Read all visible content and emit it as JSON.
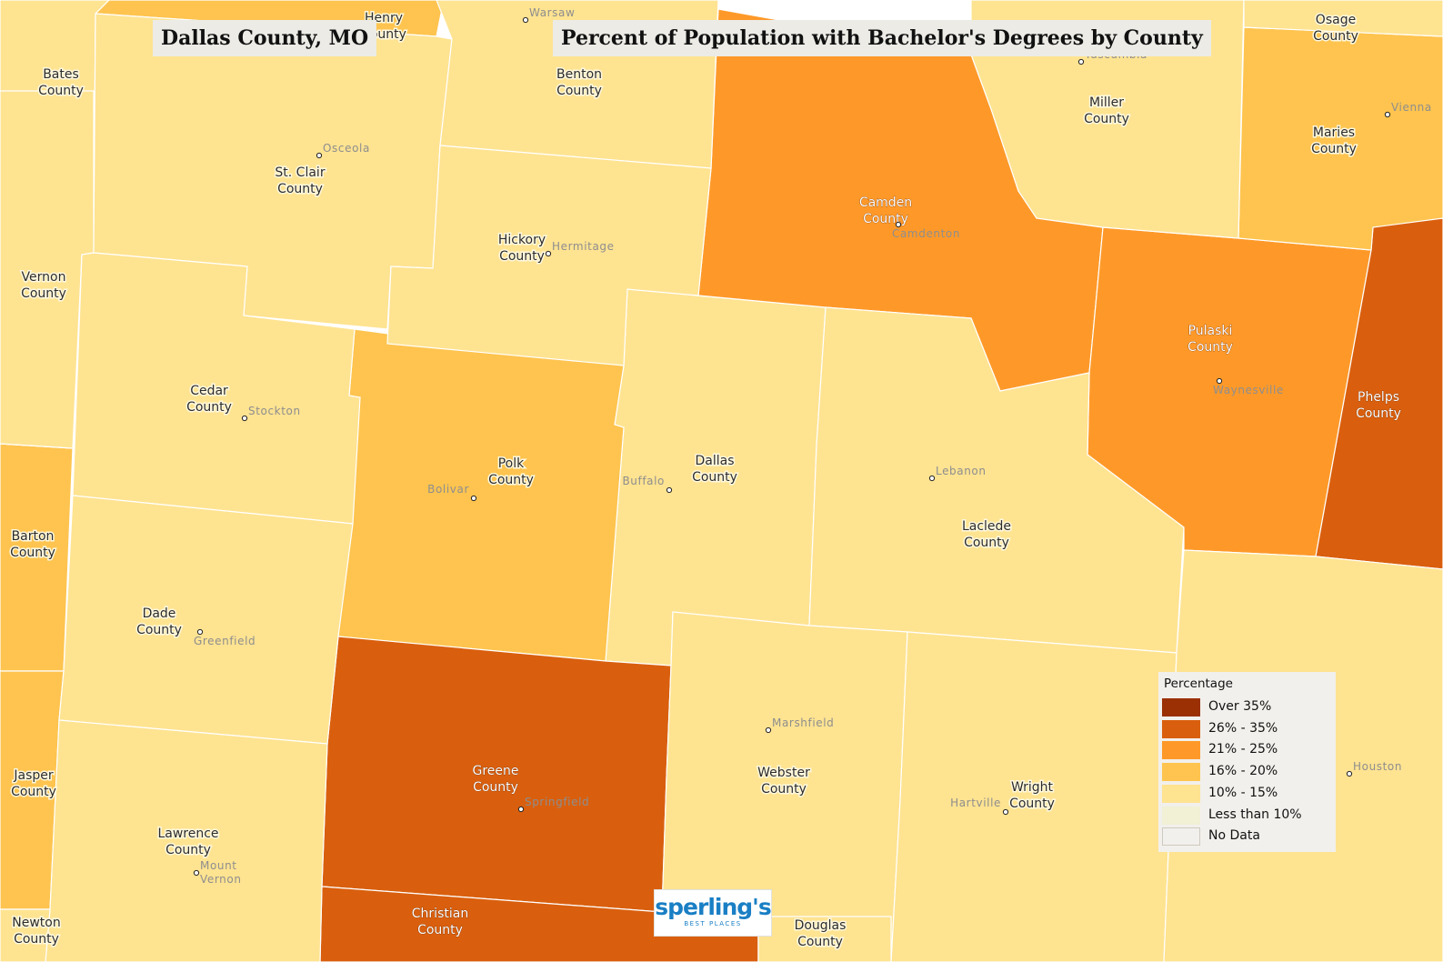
{
  "map": {
    "page_title": "Dallas County, MO",
    "chart_title": "Percent of Population with Bachelor's Degrees by County",
    "counties": [
      {
        "key": "dallas",
        "label": "Dallas County",
        "category": "10% - 15%"
      },
      {
        "key": "polk",
        "label": "Polk County",
        "category": "16% - 20%"
      },
      {
        "key": "greene",
        "label": "Greene County",
        "category": "26% - 35%"
      },
      {
        "key": "camden",
        "label": "Camden County",
        "category": "21% - 25%"
      },
      {
        "key": "pulaski",
        "label": "Pulaski County",
        "category": "21% - 25%"
      },
      {
        "key": "phelps",
        "label": "Phelps County",
        "category": "26% - 35%"
      },
      {
        "key": "maries",
        "label": "Maries County",
        "category": "16% - 20%"
      },
      {
        "key": "christian",
        "label": "Christian County",
        "category": "26% - 35%"
      },
      {
        "key": "barton",
        "label": "Barton County",
        "category": "16% - 20%"
      },
      {
        "key": "jasper",
        "label": "Jasper County",
        "category": "16% - 20%"
      },
      {
        "key": "henry",
        "label": "Henry County",
        "category": "16% - 20%"
      },
      {
        "key": "bates",
        "label": "Bates County",
        "category": "10% - 15%"
      },
      {
        "key": "vernon",
        "label": "Vernon County",
        "category": "10% - 15%"
      },
      {
        "key": "st_clair",
        "label": "St. Clair County",
        "category": "10% - 15%"
      },
      {
        "key": "benton",
        "label": "Benton County",
        "category": "10% - 15%"
      },
      {
        "key": "hickory",
        "label": "Hickory County",
        "category": "10% - 15%"
      },
      {
        "key": "cedar",
        "label": "Cedar County",
        "category": "10% - 15%"
      },
      {
        "key": "dade",
        "label": "Dade County",
        "category": "10% - 15%"
      },
      {
        "key": "lawrence",
        "label": "Lawrence County",
        "category": "10% - 15%"
      },
      {
        "key": "newton",
        "label": "Newton County",
        "category": "10% - 15%"
      },
      {
        "key": "miller",
        "label": "Miller County",
        "category": "10% - 15%"
      },
      {
        "key": "osage",
        "label": "Osage County",
        "category": "10% - 15%"
      },
      {
        "key": "laclede",
        "label": "Laclede County",
        "category": "10% - 15%"
      },
      {
        "key": "webster",
        "label": "Webster County",
        "category": "10% - 15%"
      },
      {
        "key": "wright",
        "label": "Wright County",
        "category": "10% - 15%"
      },
      {
        "key": "douglas",
        "label": "Douglas County",
        "category": "10% - 15%"
      },
      {
        "key": "texas",
        "label": "",
        "category": "10% - 15%"
      }
    ],
    "cities": [
      "Warsaw",
      "Osceola",
      "Hermitage",
      "Stockton",
      "Bolivar",
      "Buffalo",
      "Greenfield",
      "Mount Vernon",
      "Springfield",
      "Marshfield",
      "Hartville",
      "Lebanon",
      "Camdenton",
      "Waynesville",
      "Vienna",
      "Houston",
      "Tuscumbia"
    ]
  },
  "legend": {
    "title": "Percentage",
    "items": [
      {
        "label": "Over 35%",
        "color": "#9a3004"
      },
      {
        "label": "26% - 35%",
        "color": "#d95f0e"
      },
      {
        "label": "21% - 25%",
        "color": "#fe9929"
      },
      {
        "label": "16% - 20%",
        "color": "#fec44f"
      },
      {
        "label": "10% - 15%",
        "color": "#fee391"
      },
      {
        "label": "Less than 10%",
        "color": "#f2f0d5"
      },
      {
        "label": "No Data",
        "color": "#f2f0ec"
      }
    ]
  },
  "logo": {
    "main": "sperling's",
    "sub": "BEST PLACES"
  }
}
